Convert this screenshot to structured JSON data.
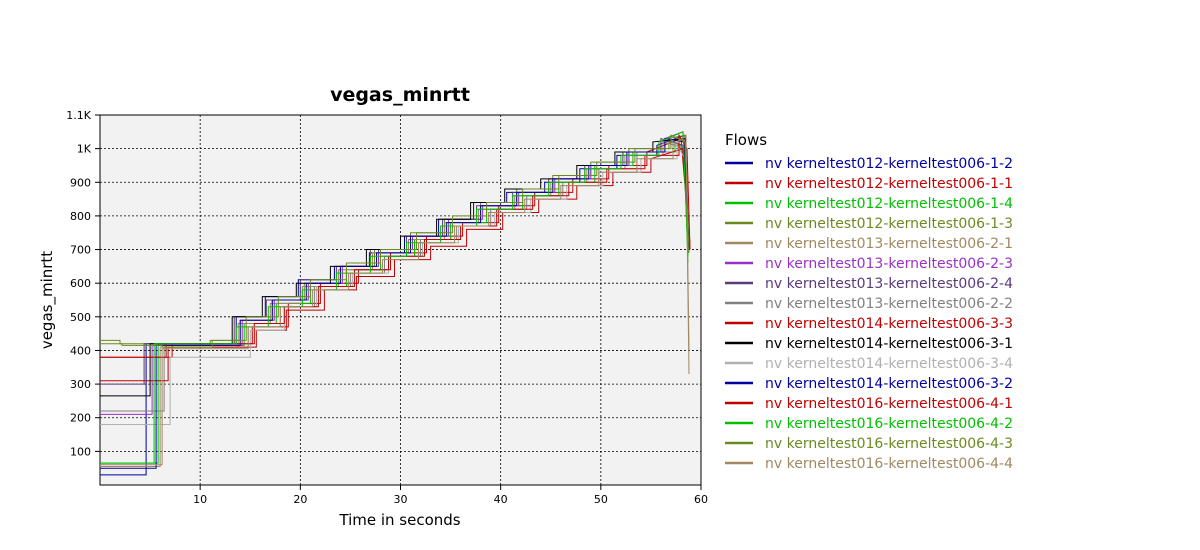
{
  "chart_data": {
    "type": "line",
    "title": "vegas_minrtt",
    "xlabel": "Time in seconds",
    "ylabel": "vegas_minrtt",
    "xlim": [
      0,
      60
    ],
    "ylim": [
      0,
      1100
    ],
    "x_ticks": [
      10,
      20,
      30,
      40,
      50,
      60
    ],
    "x_tick_labels": [
      "10",
      "20",
      "30",
      "40",
      "50",
      "60"
    ],
    "y_ticks": [
      100,
      200,
      300,
      400,
      500,
      600,
      700,
      800,
      900,
      1000,
      1100
    ],
    "y_tick_labels": [
      "100",
      "200",
      "300",
      "400",
      "500",
      "600",
      "700",
      "800",
      "900",
      "1K",
      "1.1K"
    ],
    "grid": true,
    "legend_title": "Flows",
    "legend_position": "right",
    "series": [
      {
        "name": "nv kerneltest012-kerneltest006-1-2",
        "color": "#0000a0",
        "x": [
          0,
          4.6,
          4.6,
          10.8,
          13.6,
          16.5,
          19.8,
          23.4,
          26.9,
          30.4,
          33.8,
          37.3,
          40.6,
          44.4,
          47.9,
          51.6,
          55.6,
          58.4,
          58.6,
          58.9
        ],
        "y": [
          30,
          30,
          420,
          420,
          500,
          560,
          610,
          650,
          690,
          740,
          790,
          840,
          870,
          900,
          940,
          980,
          1010,
          1040,
          770,
          700
        ]
      },
      {
        "name": "nv kerneltest012-kerneltest006-1-1",
        "color": "#c00000",
        "x": [
          0,
          7.2,
          7.2,
          12.0,
          15.2,
          18.8,
          22.0,
          25.8,
          29.0,
          32.6,
          36.2,
          39.8,
          43.4,
          47.2,
          50.8,
          54.6,
          58.0,
          58.6,
          58.9
        ],
        "y": [
          380,
          380,
          420,
          420,
          470,
          540,
          600,
          640,
          690,
          740,
          780,
          830,
          870,
          910,
          950,
          990,
          1030,
          820,
          720
        ]
      },
      {
        "name": "nv kerneltest012-kerneltest006-1-4",
        "color": "#00c000",
        "x": [
          0,
          5.8,
          5.8,
          11.4,
          14.4,
          17.6,
          21.0,
          24.6,
          28.0,
          31.4,
          35.0,
          38.6,
          42.2,
          45.8,
          49.4,
          53.2,
          57.4,
          58.3,
          58.7
        ],
        "y": [
          65,
          65,
          415,
          415,
          480,
          540,
          590,
          640,
          680,
          730,
          780,
          820,
          860,
          900,
          950,
          990,
          1020,
          990,
          660
        ]
      },
      {
        "name": "nv kerneltest012-kerneltest006-1-3",
        "color": "#6a8a20",
        "x": [
          0,
          2.0,
          2.0,
          5.8,
          11.0,
          14.0,
          17.2,
          20.4,
          24.0,
          27.4,
          31.0,
          34.4,
          38.0,
          41.6,
          45.2,
          49.0,
          52.8,
          56.8,
          58.4,
          58.7
        ],
        "y": [
          430,
          430,
          420,
          415,
          430,
          490,
          550,
          600,
          650,
          700,
          750,
          790,
          840,
          880,
          920,
          960,
          1000,
          1030,
          1040,
          680
        ]
      },
      {
        "name": "nv kerneltest013-kerneltest006-2-1",
        "color": "#a08860",
        "x": [
          0,
          6.0,
          6.0,
          10.6,
          13.8,
          17.0,
          20.2,
          23.8,
          27.2,
          30.8,
          34.4,
          37.8,
          41.4,
          45.0,
          48.6,
          52.4,
          56.2,
          58.5,
          58.8
        ],
        "y": [
          55,
          55,
          410,
          410,
          480,
          540,
          590,
          640,
          690,
          730,
          780,
          820,
          860,
          900,
          940,
          980,
          1020,
          1000,
          330
        ]
      },
      {
        "name": "nv kerneltest013-kerneltest006-2-3",
        "color": "#9a30c8",
        "x": [
          0,
          5.2,
          5.2,
          11.2,
          14.2,
          17.4,
          20.8,
          24.2,
          27.8,
          31.2,
          34.8,
          38.2,
          41.8,
          45.4,
          49.0,
          52.8,
          56.4,
          58.2,
          58.8
        ],
        "y": [
          210,
          210,
          415,
          415,
          490,
          550,
          600,
          650,
          700,
          740,
          790,
          830,
          870,
          910,
          950,
          990,
          1030,
          1050,
          720
        ]
      },
      {
        "name": "nv kerneltest013-kerneltest006-2-4",
        "color": "#5a3a7a",
        "x": [
          0,
          4.4,
          4.4,
          10.2,
          13.4,
          16.6,
          20.0,
          23.6,
          27.0,
          30.6,
          34.2,
          37.6,
          41.2,
          44.8,
          48.4,
          52.2,
          56.0,
          58.2,
          58.8
        ],
        "y": [
          300,
          300,
          420,
          420,
          500,
          550,
          610,
          650,
          700,
          740,
          790,
          830,
          870,
          910,
          950,
          990,
          1030,
          1010,
          700
        ]
      },
      {
        "name": "nv kerneltest013-kerneltest006-2-2",
        "color": "#808080",
        "x": [
          0,
          6.4,
          6.4,
          11.6,
          14.8,
          18.0,
          21.4,
          25.0,
          28.4,
          32.0,
          35.6,
          39.0,
          42.6,
          46.2,
          49.8,
          53.6,
          57.2,
          58.5,
          58.8
        ],
        "y": [
          220,
          220,
          410,
          410,
          470,
          530,
          590,
          630,
          680,
          730,
          770,
          820,
          860,
          900,
          940,
          990,
          1020,
          1000,
          700
        ]
      },
      {
        "name": "nv kerneltest014-kerneltest006-3-3",
        "color": "#c00000",
        "x": [
          0,
          6.8,
          6.8,
          12.4,
          15.6,
          18.6,
          22.4,
          25.6,
          29.4,
          33.0,
          36.6,
          40.2,
          43.8,
          47.6,
          51.2,
          55.0,
          58.2,
          58.8
        ],
        "y": [
          310,
          310,
          410,
          410,
          460,
          520,
          580,
          620,
          670,
          710,
          760,
          810,
          850,
          890,
          930,
          970,
          1000,
          700
        ]
      },
      {
        "name": "nv kerneltest014-kerneltest006-3-1",
        "color": "#000000",
        "x": [
          0,
          5.0,
          5.0,
          10.4,
          13.2,
          16.2,
          19.6,
          23.0,
          26.6,
          30.0,
          33.6,
          37.0,
          40.4,
          44.0,
          47.6,
          51.4,
          55.2,
          58.4,
          58.8
        ],
        "y": [
          265,
          265,
          420,
          420,
          500,
          560,
          600,
          650,
          700,
          740,
          790,
          840,
          880,
          910,
          950,
          990,
          1020,
          1030,
          700
        ]
      },
      {
        "name": "nv kerneltest014-kerneltest006-3-4",
        "color": "#b0b0b0",
        "x": [
          0,
          7.0,
          7.0,
          11.8,
          15.0,
          18.4,
          21.6,
          25.2,
          28.8,
          32.2,
          35.8,
          39.4,
          43.0,
          46.6,
          50.2,
          54.0,
          57.6,
          58.6,
          58.9
        ],
        "y": [
          180,
          180,
          380,
          380,
          460,
          530,
          590,
          630,
          680,
          720,
          770,
          810,
          850,
          890,
          930,
          970,
          1010,
          960,
          700
        ]
      },
      {
        "name": "nv kerneltest014-kerneltest006-3-2",
        "color": "#0000a0",
        "x": [
          0,
          5.6,
          5.6,
          11.0,
          14.0,
          17.2,
          20.6,
          24.0,
          27.6,
          31.0,
          34.6,
          38.0,
          41.6,
          45.2,
          48.8,
          52.6,
          56.4,
          58.3,
          58.8
        ],
        "y": [
          50,
          50,
          415,
          415,
          490,
          550,
          600,
          650,
          690,
          740,
          780,
          830,
          870,
          910,
          950,
          990,
          1030,
          1020,
          700
        ]
      },
      {
        "name": "nv kerneltest016-kerneltest006-4-1",
        "color": "#c00000",
        "x": [
          0,
          6.6,
          6.6,
          12.2,
          15.4,
          18.4,
          21.8,
          25.4,
          28.8,
          32.4,
          36.0,
          39.6,
          43.2,
          46.8,
          50.6,
          54.4,
          57.8,
          58.6,
          58.9
        ],
        "y": [
          380,
          380,
          420,
          420,
          480,
          530,
          590,
          640,
          680,
          730,
          770,
          820,
          860,
          900,
          940,
          980,
          1040,
          1000,
          700
        ]
      },
      {
        "name": "nv kerneltest016-kerneltest006-4-2",
        "color": "#00c000",
        "x": [
          0,
          5.4,
          5.4,
          10.8,
          13.6,
          16.8,
          20.2,
          23.6,
          27.0,
          30.6,
          34.0,
          37.6,
          41.2,
          44.8,
          48.4,
          52.0,
          55.8,
          58.2,
          58.7
        ],
        "y": [
          65,
          65,
          420,
          420,
          470,
          530,
          580,
          630,
          680,
          720,
          770,
          820,
          860,
          900,
          940,
          980,
          1020,
          1050,
          680
        ]
      },
      {
        "name": "nv kerneltest016-kerneltest006-4-3",
        "color": "#6a8a20",
        "x": [
          0,
          2.2,
          2.2,
          6.2,
          11.2,
          14.6,
          17.8,
          21.0,
          24.6,
          28.0,
          31.6,
          35.2,
          38.6,
          42.2,
          45.8,
          49.6,
          53.4,
          57.0,
          58.4,
          58.8
        ],
        "y": [
          420,
          420,
          415,
          410,
          430,
          500,
          560,
          610,
          660,
          700,
          750,
          800,
          840,
          880,
          920,
          960,
          1000,
          1040,
          1020,
          690
        ]
      },
      {
        "name": "nv kerneltest016-kerneltest006-4-4",
        "color": "#a08860",
        "x": [
          0,
          6.2,
          6.2,
          11.8,
          14.8,
          18.0,
          21.2,
          24.8,
          28.2,
          31.8,
          35.4,
          38.8,
          42.4,
          46.0,
          49.8,
          53.6,
          57.2,
          58.5,
          58.8
        ],
        "y": [
          60,
          60,
          405,
          405,
          470,
          530,
          580,
          630,
          670,
          720,
          770,
          810,
          850,
          890,
          930,
          970,
          1010,
          1040,
          400
        ]
      }
    ]
  }
}
